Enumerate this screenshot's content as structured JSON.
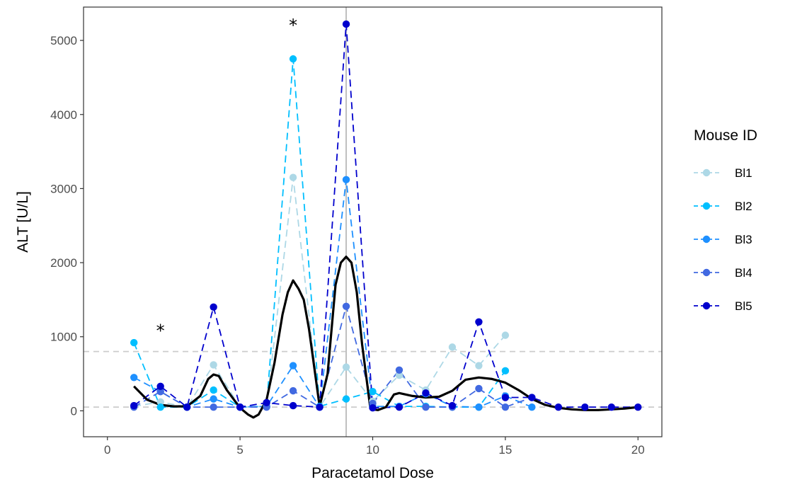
{
  "chart_data": {
    "type": "line",
    "title": "",
    "xlabel": "Paracetamol Dose",
    "ylabel": "ALT [U/L]",
    "xlim": [
      -0.9,
      20.9
    ],
    "ylim": [
      -350,
      5450
    ],
    "x_ticks": [
      0,
      5,
      10,
      15,
      20
    ],
    "y_ticks": [
      0,
      1000,
      2000,
      3000,
      4000,
      5000
    ],
    "grid": false,
    "legend_title": "Mouse ID",
    "legend_position": "right",
    "reference_lines": {
      "horizontal": [
        50,
        800
      ],
      "vertical": [
        9
      ],
      "horizontal_color": "#cccccc",
      "vertical_color": "#bfbfbf"
    },
    "annotations": [
      {
        "text": "*",
        "x": 2,
        "y": 1100
      },
      {
        "text": "*",
        "x": 7,
        "y": 5220
      }
    ],
    "series": [
      {
        "name": "Bl1",
        "color": "#add8e6",
        "x": [
          1,
          2,
          3,
          4,
          5,
          6,
          7,
          8,
          9,
          10,
          11,
          12,
          13,
          14,
          15
        ],
        "values": [
          60,
          120,
          50,
          620,
          50,
          60,
          3150,
          50,
          590,
          130,
          480,
          280,
          860,
          610,
          1020
        ]
      },
      {
        "name": "Bl2",
        "color": "#00bfff",
        "x": [
          1,
          2,
          3,
          4,
          5,
          6,
          7,
          8,
          9,
          10,
          11,
          12,
          13,
          14,
          15
        ],
        "values": [
          920,
          50,
          50,
          280,
          50,
          60,
          4750,
          60,
          160,
          260,
          60,
          60,
          50,
          50,
          540
        ]
      },
      {
        "name": "Bl3",
        "color": "#1e90ff",
        "x": [
          1,
          2,
          3,
          4,
          5,
          6,
          7,
          8,
          9,
          10,
          11,
          12,
          13,
          14,
          15,
          16
        ],
        "values": [
          450,
          260,
          50,
          160,
          50,
          60,
          610,
          50,
          3120,
          60,
          60,
          230,
          60,
          50,
          200,
          50
        ]
      },
      {
        "name": "Bl4",
        "color": "#4169e1",
        "x": [
          1,
          2,
          3,
          4,
          5,
          6,
          7,
          8,
          9,
          10,
          11,
          12,
          13,
          14,
          15,
          16
        ],
        "values": [
          50,
          260,
          50,
          50,
          50,
          50,
          270,
          50,
          1410,
          100,
          550,
          50,
          50,
          300,
          50,
          180
        ]
      },
      {
        "name": "Bl5",
        "color": "#0000cd",
        "x": [
          1,
          2,
          3,
          4,
          5,
          6,
          7,
          8,
          9,
          10,
          11,
          12,
          13,
          14,
          15,
          16,
          17,
          18,
          19,
          20
        ],
        "values": [
          70,
          330,
          50,
          1400,
          50,
          110,
          70,
          50,
          5220,
          40,
          50,
          240,
          70,
          1200,
          180,
          180,
          50,
          50,
          50,
          50
        ]
      }
    ],
    "smooth": {
      "color": "#000000",
      "x": [
        1,
        1.5,
        2,
        2.5,
        3,
        3.5,
        3.8,
        4,
        4.2,
        4.5,
        5,
        5.3,
        5.5,
        5.7,
        6,
        6.3,
        6.6,
        6.8,
        7,
        7.2,
        7.4,
        7.6,
        8,
        8.3,
        8.6,
        8.8,
        9,
        9.2,
        9.4,
        9.6,
        9.9,
        10,
        10.2,
        10.5,
        10.8,
        11,
        11.5,
        12,
        12.5,
        13,
        13.5,
        14,
        14.5,
        15,
        15.5,
        16,
        16.5,
        17,
        17.5,
        18,
        18.5,
        19,
        19.5,
        20
      ],
      "values": [
        330,
        150,
        80,
        60,
        60,
        200,
        430,
        490,
        470,
        280,
        40,
        -50,
        -90,
        -50,
        150,
        650,
        1300,
        1600,
        1760,
        1650,
        1500,
        1100,
        60,
        500,
        1700,
        2000,
        2080,
        2000,
        1600,
        900,
        60,
        20,
        10,
        50,
        220,
        240,
        200,
        180,
        190,
        270,
        420,
        450,
        430,
        380,
        280,
        160,
        80,
        40,
        20,
        10,
        10,
        20,
        30,
        50
      ]
    }
  }
}
